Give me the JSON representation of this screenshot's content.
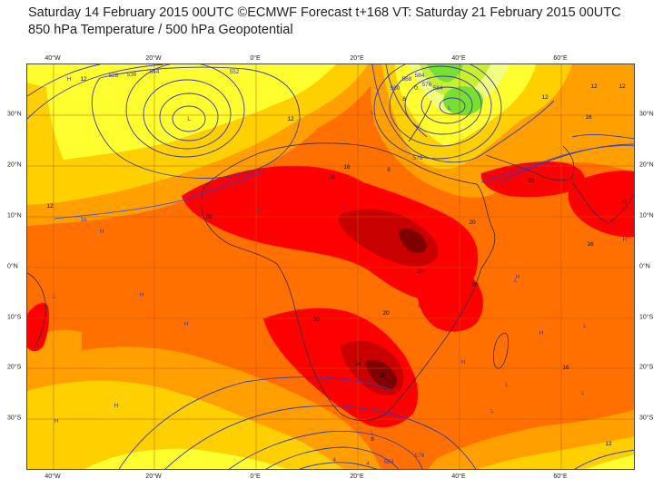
{
  "header": {
    "line1": "Saturday 14 February 2015 00UTC ©ECMWF Forecast t+168 VT: Saturday 21 February 2015 00UTC",
    "line2": "850 hPa Temperature / 500 hPa Geopotential"
  },
  "axes": {
    "lon_labels": [
      "40°W",
      "20°W",
      "0°E",
      "20°E",
      "40°E",
      "60°E"
    ],
    "lat_labels": [
      "30°N",
      "20°N",
      "10°N",
      "0°N",
      "10°S",
      "20°S",
      "30°S"
    ]
  },
  "colors": {
    "temp_18_24": "#ff7000",
    "temp_16_18": "#ffa000",
    "temp_12_16": "#ffd000",
    "temp_8_12": "#ffff30",
    "temp_4_8": "#f0ff80",
    "temp_0_4": "#c8f030",
    "temp_neg": "#78e030",
    "temp_24_28": "#ff0000",
    "temp_28_32": "#c80000",
    "temp_32_plus": "#800000",
    "geopotential": "#3a3aaa",
    "isotherm": "#2040ff"
  },
  "geopotential_labels": [
    "528",
    "536",
    "544",
    "552",
    "560",
    "568",
    "576",
    "584",
    "576",
    "584",
    "576",
    "584"
  ],
  "temperature_labels": [
    "12",
    "12",
    "12",
    "12",
    "12",
    "12",
    "16",
    "16",
    "16",
    "16",
    "16",
    "20",
    "20",
    "20",
    "20",
    "20",
    "20",
    "24",
    "24",
    "28",
    "8",
    "8",
    "8",
    "4",
    "4",
    "0",
    "12",
    "16",
    "16"
  ],
  "pressure_letters": [
    "H",
    "H",
    "H",
    "H",
    "H",
    "H",
    "H",
    "H",
    "H",
    "H",
    "L",
    "L",
    "L",
    "L",
    "L",
    "L",
    "L",
    "L",
    "L",
    "L",
    "L",
    "L",
    "L"
  ]
}
